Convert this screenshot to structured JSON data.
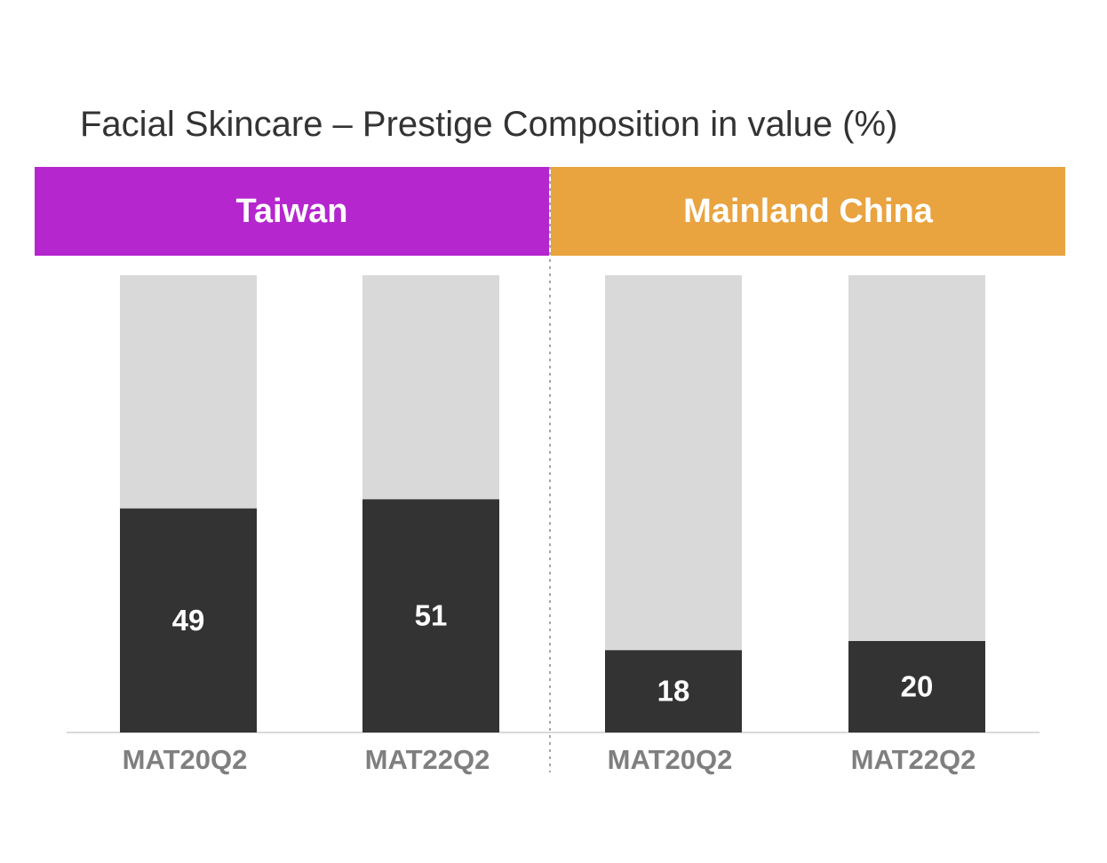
{
  "chart_data": {
    "type": "bar",
    "title": "Facial Skincare – Prestige Composition in value (%)",
    "stacked": true,
    "total": 100,
    "groups": [
      {
        "name": "Taiwan",
        "color": "#B526CF",
        "categories": [
          "MAT20Q2",
          "MAT22Q2"
        ],
        "values": [
          49,
          51
        ]
      },
      {
        "name": "Mainland China",
        "color": "#E9A33F",
        "categories": [
          "MAT20Q2",
          "MAT22Q2"
        ],
        "values": [
          18,
          20
        ]
      }
    ],
    "colors": {
      "value": "#333333",
      "remainder": "#D9D9D9",
      "label": "#FFFFFF",
      "tick": "#7F7F7F"
    }
  }
}
